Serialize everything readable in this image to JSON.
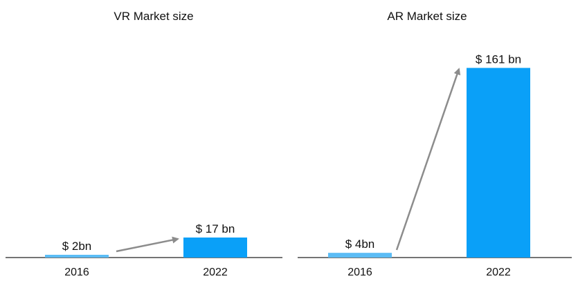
{
  "chart_data": [
    {
      "type": "bar",
      "title": "VR Market size",
      "categories": [
        "2016",
        "2022"
      ],
      "values": [
        2,
        17
      ],
      "value_labels": [
        "$ 2bn",
        "$ 17 bn"
      ],
      "unit": "bn USD",
      "ylim": [
        0,
        170
      ],
      "colors": [
        "#5bbcf5",
        "#0aa0f8"
      ],
      "annotation": "arrow from 2016 to 2022"
    },
    {
      "type": "bar",
      "title": "AR Market size",
      "categories": [
        "2016",
        "2022"
      ],
      "values": [
        4,
        161
      ],
      "value_labels": [
        "$ 4bn",
        "$ 161 bn"
      ],
      "unit": "bn USD",
      "ylim": [
        0,
        170
      ],
      "colors": [
        "#5bbcf5",
        "#0aa0f8"
      ],
      "annotation": "arrow from 2016 to 2022"
    }
  ],
  "colors": {
    "arrow": "#8c8c8c",
    "axis": "#222222"
  }
}
